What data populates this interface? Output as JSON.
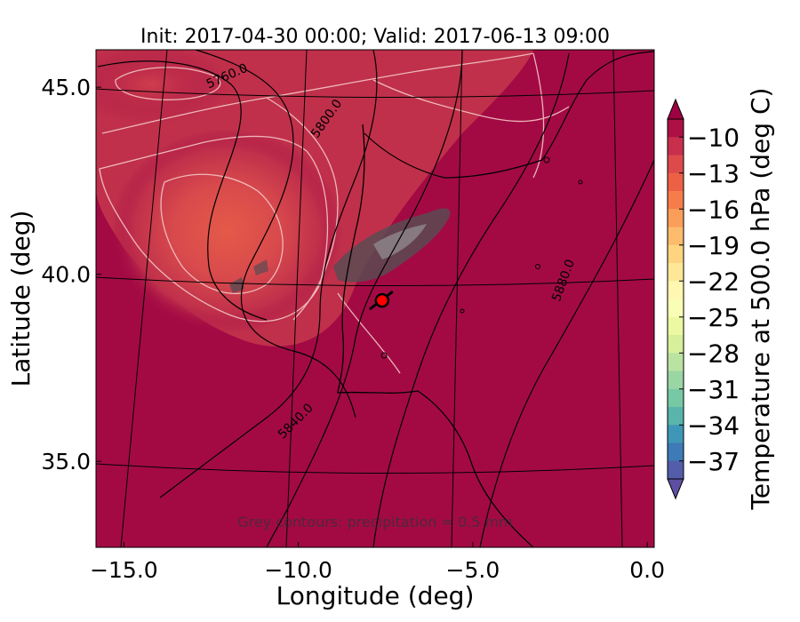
{
  "chart_data": {
    "type": "heatmap",
    "title": "Init: 2017-04-30 00:00; Valid: 2017-06-13 09:00",
    "xlabel": "Longitude (deg)",
    "ylabel": "Latitude (deg)",
    "xlim": [
      -15.8,
      0.2
    ],
    "ylim": [
      32.7,
      46.0
    ],
    "x_ticks": [
      -15.0,
      -10.0,
      -5.0,
      0.0
    ],
    "x_tick_labels": [
      "−15.0",
      "−10.0",
      "−5.0",
      "0.0"
    ],
    "y_ticks": [
      35.0,
      40.0,
      45.0
    ],
    "y_tick_labels": [
      "35.0",
      "40.0",
      "45.0"
    ],
    "colorbar": {
      "label": "Temperature at 500.0 hPa (deg C)",
      "min": -38.5,
      "max": -8.5,
      "ticks": [
        -10,
        -13,
        -16,
        -19,
        -22,
        -25,
        -28,
        -31,
        -34,
        -37
      ],
      "tick_labels": [
        "−10",
        "−13",
        "−16",
        "−19",
        "−22",
        "−25",
        "−28",
        "−31",
        "−34",
        "−37"
      ],
      "colormap": "Spectral",
      "colors": [
        "#9e0142",
        "#d53e4f",
        "#f46d43",
        "#fdae61",
        "#fee08b",
        "#ffffbf",
        "#e6f598",
        "#abdda4",
        "#66c2a5",
        "#3288bd",
        "#5e4fa2"
      ],
      "extend": "both"
    },
    "height_contours": {
      "levels": [
        5760,
        5800,
        5840,
        5880
      ],
      "labels": [
        "5760.0",
        "5800.0",
        "5840.0",
        "5880.0"
      ],
      "color": "#000000"
    },
    "temperature_field": {
      "background": -10.5,
      "cold_core": {
        "lon": -11.0,
        "lat": 41.0,
        "value": -14.2
      }
    },
    "marker": {
      "lon": -7.6,
      "lat": 39.3,
      "color": "#ff0000"
    },
    "annotation": "Grey contours: precipitation = 0.5 mm"
  }
}
